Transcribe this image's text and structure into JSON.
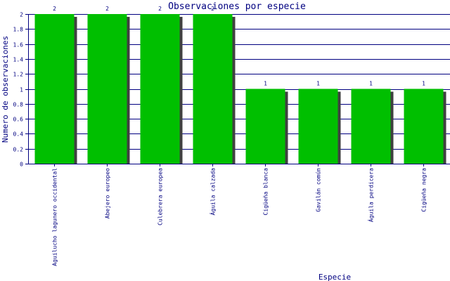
{
  "chart_data": {
    "type": "bar",
    "title": "Observaciones por especie",
    "xlabel": "Especie",
    "ylabel": "Numero de observaciones",
    "categories": [
      "Aguilucho lagunero occidental",
      "Abejero europeo",
      "Culebrera europea",
      "Águila calzada",
      "Cigüeña blanca",
      "Gavilán común",
      "Águila perdicera",
      "Cigüeña negra"
    ],
    "values": [
      2,
      2,
      2,
      2,
      1,
      1,
      1,
      1
    ],
    "data_labels": [
      "2",
      "2",
      "2",
      "2",
      "1",
      "1",
      "1",
      "1"
    ],
    "yticks": [
      "0",
      "0.2",
      "0.4",
      "0.6",
      "0.8",
      "1",
      "1.2",
      "1.4",
      "1.6",
      "1.8",
      "2"
    ],
    "ylim": [
      0,
      2
    ],
    "grid": true,
    "legend": "none",
    "colors": {
      "bar": "#00bf00",
      "shadow": "#404040",
      "grid": "#000080",
      "axis": "#000080",
      "text": "#000080",
      "background": "#ffffff"
    }
  }
}
